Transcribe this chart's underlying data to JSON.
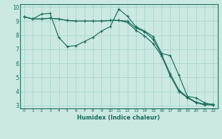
{
  "xlabel": "Humidex (Indice chaleur)",
  "bg_color": "#cbe8e3",
  "grid_color": "#a8d5cc",
  "line_color": "#1a6b5a",
  "spine_color": "#1a6b5a",
  "xlim": [
    -0.5,
    22.5
  ],
  "ylim": [
    2.8,
    10.2
  ],
  "xticks": [
    0,
    1,
    2,
    3,
    4,
    5,
    6,
    7,
    8,
    9,
    10,
    11,
    12,
    13,
    14,
    15,
    16,
    17,
    18,
    19,
    20,
    21,
    22
  ],
  "yticks": [
    3,
    4,
    5,
    6,
    7,
    8,
    9,
    10
  ],
  "line1_x": [
    0,
    1,
    2,
    3,
    4,
    5,
    6,
    7,
    8,
    9,
    10,
    11,
    12,
    13,
    14,
    15,
    16,
    17,
    18,
    19,
    20,
    21,
    22
  ],
  "line1_y": [
    9.3,
    9.15,
    9.15,
    9.2,
    9.15,
    9.05,
    9.0,
    9.0,
    9.0,
    9.0,
    9.05,
    9.05,
    8.9,
    8.35,
    7.95,
    7.4,
    6.5,
    5.1,
    4.0,
    3.55,
    3.2,
    3.05,
    3.05
  ],
  "line2_x": [
    0,
    1,
    2,
    3,
    4,
    5,
    6,
    7,
    8,
    9,
    10,
    11,
    12,
    13,
    14,
    15,
    16,
    17,
    18,
    19,
    20,
    21,
    22
  ],
  "line2_y": [
    9.3,
    9.15,
    9.5,
    9.55,
    7.85,
    7.2,
    7.25,
    7.55,
    7.85,
    8.3,
    8.6,
    9.85,
    9.35,
    8.6,
    8.3,
    7.9,
    6.7,
    6.55,
    5.15,
    3.65,
    3.55,
    3.2,
    3.05
  ],
  "line3_x": [
    0,
    1,
    2,
    3,
    4,
    5,
    6,
    7,
    8,
    9,
    10,
    11,
    12,
    13,
    14,
    15,
    16,
    17,
    18,
    19,
    20,
    21,
    22
  ],
  "line3_y": [
    9.3,
    9.15,
    9.15,
    9.2,
    9.15,
    9.05,
    9.0,
    9.0,
    9.0,
    9.0,
    9.05,
    9.05,
    9.0,
    8.5,
    8.25,
    7.7,
    6.6,
    5.25,
    4.1,
    3.6,
    3.25,
    3.1,
    3.1
  ]
}
